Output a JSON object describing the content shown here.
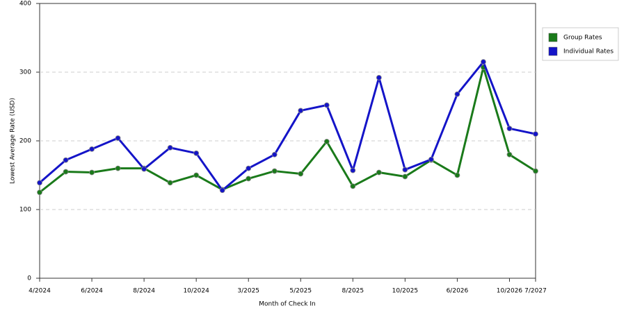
{
  "chart_data": {
    "type": "line",
    "x_label": "Month of Check In",
    "y_label": "Lowest Average Rate (USD)",
    "categories": [
      "4/2024",
      null,
      "6/2024",
      null,
      "8/2024",
      null,
      "10/2024",
      null,
      "3/2025",
      null,
      "5/2025",
      null,
      "8/2025",
      null,
      "10/2025",
      null,
      "6/2026",
      null,
      "10/2026",
      "7/2027"
    ],
    "series": [
      {
        "name": "Group Rates",
        "color": "#1a7a1a",
        "values": [
          125,
          155,
          154,
          160,
          160,
          139,
          150,
          129,
          145,
          156,
          152,
          199,
          134,
          154,
          148,
          172,
          150,
          307,
          180,
          156
        ]
      },
      {
        "name": "Individual Rates",
        "color": "#1414c8",
        "values": [
          139,
          172,
          188,
          204,
          159,
          190,
          182,
          128,
          160,
          180,
          244,
          252,
          157,
          292,
          158,
          173,
          268,
          315,
          218,
          210
        ]
      }
    ],
    "ylim": [
      0,
      400
    ],
    "yticks": [
      0,
      100,
      200,
      300,
      400
    ],
    "grid": true,
    "legend": "right"
  }
}
